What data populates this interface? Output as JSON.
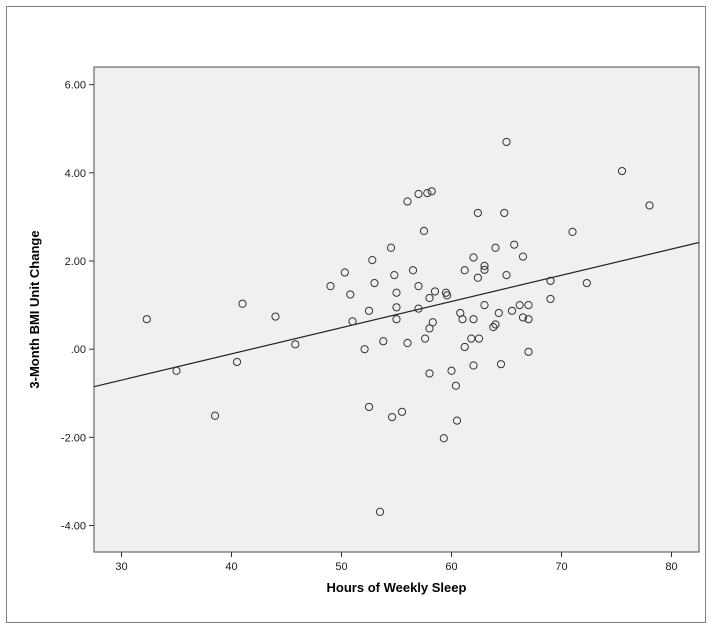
{
  "chart_data": {
    "type": "scatter",
    "title": "",
    "xlabel": "Hours of Weekly Sleep",
    "ylabel": "3-Month BMI Unit Change",
    "xlim": [
      27.5,
      82.5
    ],
    "ylim": [
      -4.6,
      6.4
    ],
    "x_ticks": [
      30,
      40,
      50,
      60,
      70,
      80
    ],
    "x_tick_labels": [
      "30",
      "40",
      "50",
      "60",
      "70",
      "80"
    ],
    "y_ticks": [
      -4,
      -2,
      0,
      2,
      4,
      6
    ],
    "y_tick_labels": [
      "-4.00",
      "-2.00",
      ".00",
      "2.00",
      "4.00",
      "6.00"
    ],
    "grid": false,
    "legend": "none",
    "colors": {
      "plot_background": "#f0f0f0",
      "marker_stroke": "#333333",
      "fit_line": "#222222"
    },
    "fit_line": {
      "x": [
        27.5,
        82.5
      ],
      "y": [
        -0.85,
        2.42
      ]
    },
    "points": [
      {
        "x": 32.3,
        "y": 0.68
      },
      {
        "x": 35.0,
        "y": -0.49
      },
      {
        "x": 38.5,
        "y": -1.51
      },
      {
        "x": 40.5,
        "y": -0.29
      },
      {
        "x": 41.0,
        "y": 1.03
      },
      {
        "x": 44.0,
        "y": 0.74
      },
      {
        "x": 45.8,
        "y": 0.11
      },
      {
        "x": 49.0,
        "y": 1.43
      },
      {
        "x": 50.3,
        "y": 1.74
      },
      {
        "x": 50.8,
        "y": 1.24
      },
      {
        "x": 51.0,
        "y": 0.63
      },
      {
        "x": 52.1,
        "y": 0.0
      },
      {
        "x": 52.5,
        "y": 0.87
      },
      {
        "x": 52.5,
        "y": -1.31
      },
      {
        "x": 52.8,
        "y": 2.02
      },
      {
        "x": 53.0,
        "y": 1.5
      },
      {
        "x": 53.5,
        "y": -3.69
      },
      {
        "x": 53.8,
        "y": 0.18
      },
      {
        "x": 54.5,
        "y": 2.3
      },
      {
        "x": 54.6,
        "y": -1.54
      },
      {
        "x": 54.8,
        "y": 1.68
      },
      {
        "x": 55.0,
        "y": 1.28
      },
      {
        "x": 55.0,
        "y": 0.95
      },
      {
        "x": 55.0,
        "y": 0.68
      },
      {
        "x": 55.5,
        "y": -1.42
      },
      {
        "x": 56.0,
        "y": 3.35
      },
      {
        "x": 56.0,
        "y": 0.14
      },
      {
        "x": 56.5,
        "y": 1.79
      },
      {
        "x": 57.0,
        "y": 3.52
      },
      {
        "x": 57.0,
        "y": 1.43
      },
      {
        "x": 57.0,
        "y": 0.92
      },
      {
        "x": 57.5,
        "y": 2.68
      },
      {
        "x": 57.6,
        "y": 0.24
      },
      {
        "x": 57.8,
        "y": 3.54
      },
      {
        "x": 58.0,
        "y": 1.16
      },
      {
        "x": 58.0,
        "y": 0.47
      },
      {
        "x": 58.0,
        "y": -0.55
      },
      {
        "x": 58.2,
        "y": 3.58
      },
      {
        "x": 58.3,
        "y": 0.61
      },
      {
        "x": 58.5,
        "y": 1.31
      },
      {
        "x": 59.3,
        "y": -2.02
      },
      {
        "x": 59.5,
        "y": 1.28
      },
      {
        "x": 59.6,
        "y": 1.22
      },
      {
        "x": 60.0,
        "y": -0.49
      },
      {
        "x": 60.4,
        "y": -0.83
      },
      {
        "x": 60.5,
        "y": -1.62
      },
      {
        "x": 60.8,
        "y": 0.82
      },
      {
        "x": 61.0,
        "y": 0.68
      },
      {
        "x": 61.2,
        "y": 1.79
      },
      {
        "x": 61.2,
        "y": 0.05
      },
      {
        "x": 61.8,
        "y": 0.24
      },
      {
        "x": 62.0,
        "y": 2.08
      },
      {
        "x": 62.0,
        "y": -0.37
      },
      {
        "x": 62.0,
        "y": 0.68
      },
      {
        "x": 62.4,
        "y": 3.09
      },
      {
        "x": 62.4,
        "y": 1.62
      },
      {
        "x": 62.5,
        "y": 0.24
      },
      {
        "x": 63.0,
        "y": 1.89
      },
      {
        "x": 63.0,
        "y": 1.8
      },
      {
        "x": 63.0,
        "y": 1.0
      },
      {
        "x": 63.8,
        "y": 0.5
      },
      {
        "x": 64.0,
        "y": 2.3
      },
      {
        "x": 64.0,
        "y": 0.56
      },
      {
        "x": 64.3,
        "y": 0.82
      },
      {
        "x": 64.5,
        "y": -0.34
      },
      {
        "x": 64.8,
        "y": 3.09
      },
      {
        "x": 65.0,
        "y": 4.7
      },
      {
        "x": 65.0,
        "y": 1.68
      },
      {
        "x": 65.5,
        "y": 0.87
      },
      {
        "x": 65.7,
        "y": 2.37
      },
      {
        "x": 66.2,
        "y": 1.0
      },
      {
        "x": 66.5,
        "y": 2.1
      },
      {
        "x": 66.5,
        "y": 0.72
      },
      {
        "x": 67.0,
        "y": 1.0
      },
      {
        "x": 67.0,
        "y": 0.68
      },
      {
        "x": 67.0,
        "y": -0.06
      },
      {
        "x": 69.0,
        "y": 1.55
      },
      {
        "x": 69.0,
        "y": 1.14
      },
      {
        "x": 71.0,
        "y": 2.66
      },
      {
        "x": 72.3,
        "y": 1.5
      },
      {
        "x": 75.5,
        "y": 4.04
      },
      {
        "x": 78.0,
        "y": 3.26
      }
    ]
  }
}
